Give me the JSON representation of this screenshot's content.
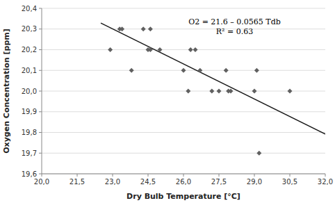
{
  "chart_data": {
    "type": "scatter",
    "x_label": "Dry Bulb Temperature [°C]",
    "y_label": "Oxygen Concentration [ppm]",
    "annotations": [
      "O2 = 21.6 – 0.0565 Tdb",
      "R² = 0.63"
    ],
    "grid": "y",
    "xlim": [
      20.0,
      32.0
    ],
    "ylim": [
      19.6,
      20.4
    ],
    "xticks": [
      {
        "value": 20.0,
        "label": "20,0"
      },
      {
        "value": 21.5,
        "label": "21,5"
      },
      {
        "value": 23.0,
        "label": "23,0"
      },
      {
        "value": 24.5,
        "label": "24,5"
      },
      {
        "value": 26.0,
        "label": "26,0"
      },
      {
        "value": 27.5,
        "label": "27,5"
      },
      {
        "value": 29.0,
        "label": "29,0"
      },
      {
        "value": 30.5,
        "label": "30,5"
      },
      {
        "value": 32.0,
        "label": "32,0"
      }
    ],
    "yticks": [
      {
        "value": 19.6,
        "label": "19,6"
      },
      {
        "value": 19.7,
        "label": "19,7"
      },
      {
        "value": 19.8,
        "label": "19,8"
      },
      {
        "value": 19.9,
        "label": "19,9"
      },
      {
        "value": 20.0,
        "label": "20,0"
      },
      {
        "value": 20.1,
        "label": "20,1"
      },
      {
        "value": 20.2,
        "label": "20,2"
      },
      {
        "value": 20.3,
        "label": "20,3"
      },
      {
        "value": 20.4,
        "label": "20,4"
      }
    ],
    "series": [
      {
        "type": "scatter",
        "color": "#606060",
        "marker": "diamond",
        "x": [
          22.9,
          23.3,
          23.4,
          23.8,
          24.3,
          24.5,
          24.6,
          24.6,
          25.0,
          26.0,
          26.2,
          26.3,
          26.5,
          26.7,
          27.2,
          27.5,
          27.8,
          27.9,
          28.0,
          29.0,
          29.1,
          29.2,
          30.5
        ],
        "values": [
          20.2,
          20.3,
          20.3,
          20.1,
          20.3,
          20.2,
          20.2,
          20.3,
          20.2,
          20.1,
          20.0,
          20.2,
          20.2,
          20.1,
          20.0,
          20.0,
          20.1,
          20.0,
          20.0,
          20.0,
          20.1,
          19.7,
          20.0
        ]
      },
      {
        "type": "line",
        "color": "#1a1a1a",
        "line_style": "solid",
        "x": [
          22.5,
          32.0
        ],
        "values": [
          20.32875,
          19.792
        ]
      }
    ]
  }
}
